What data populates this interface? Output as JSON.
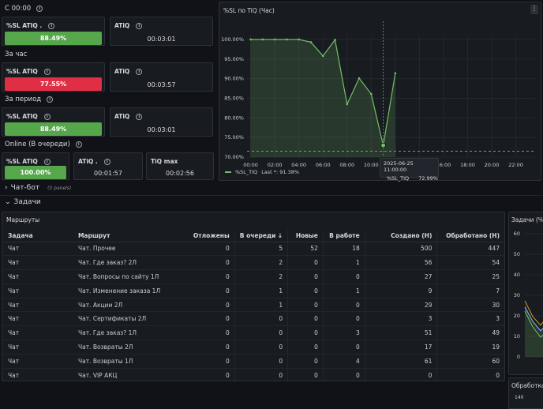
{
  "sections": {
    "now": "С 00:00",
    "hour": "За час",
    "period": "За период",
    "online": "Online (В очереди)"
  },
  "stats": {
    "now": {
      "sl_label": "%SL ATIQ .",
      "sl_value": "88.49%",
      "sl_fraction": 0.8849,
      "sl_color": "#56a64b",
      "atiq_label": "ATiQ",
      "atiq_value": "00:03:01"
    },
    "hour": {
      "sl_label": "%SL ATIQ",
      "sl_value": "77.55%",
      "sl_fraction": 0.7755,
      "sl_color": "#e02f44",
      "atiq_label": "ATiQ",
      "atiq_value": "00:03:57"
    },
    "period": {
      "sl_label": "%SL ATIQ",
      "sl_value": "88.49%",
      "sl_fraction": 0.8849,
      "sl_color": "#56a64b",
      "atiq_label": "ATiQ",
      "atiq_value": "00:03:01"
    },
    "online": {
      "sl_label": "%SL ATIQ",
      "sl_value": "100.00%",
      "sl_fraction": 1.0,
      "sl_color": "#56a64b",
      "atiq_label": "ATiQ .",
      "atiq_value": "00:01:57",
      "tiqmax_label": "TiQ max",
      "tiqmax_value": "00:02:56"
    }
  },
  "chart_panel": {
    "title": "%SL по TiQ (Час)",
    "menu_icon": "kebab-menu-icon",
    "legend": {
      "series": "%SL_TIQ",
      "last_label": "Last *: 91.38%"
    },
    "tooltip": {
      "time": "2025-06-25 11:00:00",
      "series": "%SL_TIQ",
      "value": "72.99%"
    }
  },
  "chart_data": {
    "type": "line",
    "title": "%SL по TiQ (Час)",
    "y_ticks": [
      "100.00%",
      "95.00%",
      "90.00%",
      "85.00%",
      "80.00%",
      "75.00%",
      "70.00%"
    ],
    "x_ticks": [
      "00:00",
      "02:00",
      "04:00",
      "06:00",
      "08:00",
      "10:00",
      "12:00",
      "14:00",
      "16:00",
      "18:00",
      "20:00",
      "22:00"
    ],
    "ylim": [
      70,
      101
    ],
    "xlim_hours": [
      -0.3,
      23.6
    ],
    "threshold": 71.5,
    "series": [
      {
        "name": "%SL_TIQ",
        "color": "#73bf69",
        "x": [
          0,
          1,
          2,
          3,
          4,
          5,
          6,
          7,
          8,
          9,
          10,
          11,
          12
        ],
        "y": [
          100,
          100,
          100,
          100,
          100,
          99.3,
          95.8,
          99.9,
          83.5,
          90.1,
          86.1,
          72.99,
          91.38
        ]
      }
    ],
    "grid": true,
    "legend_position": "bottom-left"
  },
  "rows": {
    "chatbot": {
      "label": "Чат-бот",
      "meta": "(3 panels)"
    },
    "tasks": {
      "label": "Задачи"
    }
  },
  "routes_table": {
    "title": "Маршруты",
    "sort_icon": "arrow-down-icon",
    "columns": [
      "Задача",
      "Маршрут",
      "Отложены",
      "В очереди",
      "Новые",
      "В работе",
      "Создано (Н)",
      "Обработано (Н)"
    ],
    "rows": [
      [
        "Чат",
        "Чат. Прочее",
        "0",
        "5",
        "52",
        "18",
        "500",
        "447"
      ],
      [
        "Чат",
        "Чат. Где заказ? 2Л",
        "0",
        "2",
        "0",
        "1",
        "56",
        "54"
      ],
      [
        "Чат",
        "Чат. Вопросы по сайту 1Л",
        "0",
        "2",
        "0",
        "0",
        "27",
        "25"
      ],
      [
        "Чат",
        "Чат. Изменение заказа 1Л",
        "0",
        "1",
        "0",
        "1",
        "9",
        "7"
      ],
      [
        "Чат",
        "Чат. Акции 2Л",
        "0",
        "1",
        "0",
        "0",
        "29",
        "30"
      ],
      [
        "Чат",
        "Чат. Сертификаты 2Л",
        "0",
        "0",
        "0",
        "0",
        "3",
        "3"
      ],
      [
        "Чат",
        "Чат. Где заказ? 1Л",
        "0",
        "0",
        "0",
        "3",
        "51",
        "49"
      ],
      [
        "Чат",
        "Чат. Возвраты 2Л",
        "0",
        "0",
        "0",
        "0",
        "17",
        "19"
      ],
      [
        "Чат",
        "Чат. Возвраты 1Л",
        "0",
        "0",
        "0",
        "4",
        "61",
        "60"
      ],
      [
        "Чат",
        "Чат. VIP АКЦ",
        "0",
        "0",
        "0",
        "0",
        "0",
        "0"
      ]
    ]
  },
  "side_panel": {
    "title": "Задачи (Ча",
    "y_ticks": [
      "60",
      "50",
      "40",
      "30",
      "20",
      "10",
      "0"
    ],
    "series_colors": [
      "#c9a227",
      "#8ab8ff",
      "#73bf69"
    ]
  },
  "bottom_panel": {
    "title": "Обработка",
    "y_tick": "140"
  }
}
